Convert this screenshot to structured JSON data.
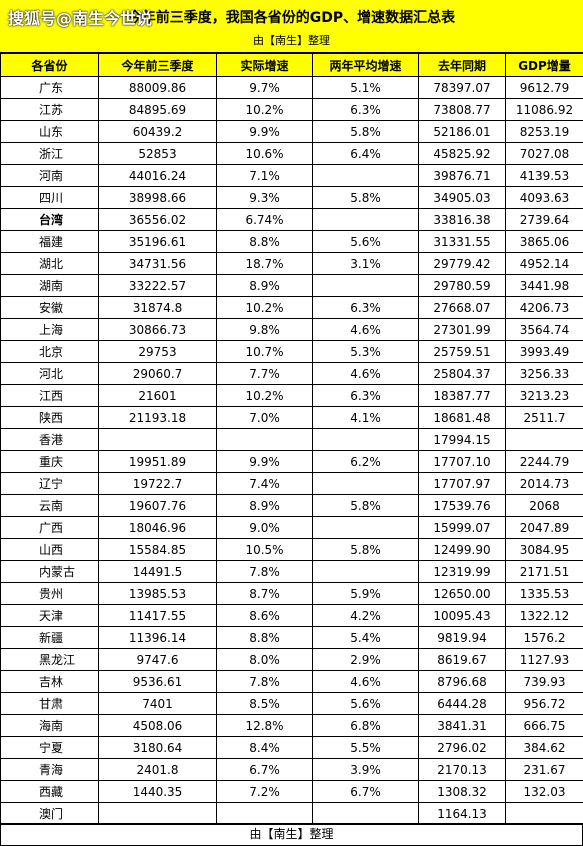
{
  "header": {
    "watermark": "搜狐号@南生今世说",
    "title": "今年前三季度，我国各省份的GDP、增速数据汇总表",
    "subtitle": "由【南生】整理"
  },
  "table": {
    "columns": [
      "各省份",
      "今年前三季度",
      "实际增速",
      "两年平均增速",
      "去年同期",
      "GDP增量"
    ],
    "rows": [
      [
        "广东",
        "88009.86",
        "9.7%",
        "5.1%",
        "78397.07",
        "9612.79"
      ],
      [
        "江苏",
        "84895.69",
        "10.2%",
        "6.3%",
        "73808.77",
        "11086.92"
      ],
      [
        "山东",
        "60439.2",
        "9.9%",
        "5.8%",
        "52186.01",
        "8253.19"
      ],
      [
        "浙江",
        "52853",
        "10.6%",
        "6.4%",
        "45825.92",
        "7027.08"
      ],
      [
        "河南",
        "44016.24",
        "7.1%",
        "",
        "39876.71",
        "4139.53"
      ],
      [
        "四川",
        "38998.66",
        "9.3%",
        "5.8%",
        "34905.03",
        "4093.63"
      ],
      [
        "台湾",
        "36556.02",
        "6.74%",
        "",
        "33816.38",
        "2739.64"
      ],
      [
        "福建",
        "35196.61",
        "8.8%",
        "5.6%",
        "31331.55",
        "3865.06"
      ],
      [
        "湖北",
        "34731.56",
        "18.7%",
        "3.1%",
        "29779.42",
        "4952.14"
      ],
      [
        "湖南",
        "33222.57",
        "8.9%",
        "",
        "29780.59",
        "3441.98"
      ],
      [
        "安徽",
        "31874.8",
        "10.2%",
        "6.3%",
        "27668.07",
        "4206.73"
      ],
      [
        "上海",
        "30866.73",
        "9.8%",
        "4.6%",
        "27301.99",
        "3564.74"
      ],
      [
        "北京",
        "29753",
        "10.7%",
        "5.3%",
        "25759.51",
        "3993.49"
      ],
      [
        "河北",
        "29060.7",
        "7.7%",
        "4.6%",
        "25804.37",
        "3256.33"
      ],
      [
        "江西",
        "21601",
        "10.2%",
        "6.3%",
        "18387.77",
        "3213.23"
      ],
      [
        "陕西",
        "21193.18",
        "7.0%",
        "4.1%",
        "18681.48",
        "2511.7"
      ],
      [
        "香港",
        "",
        "",
        "",
        "17994.15",
        ""
      ],
      [
        "重庆",
        "19951.89",
        "9.9%",
        "6.2%",
        "17707.10",
        "2244.79"
      ],
      [
        "辽宁",
        "19722.7",
        "7.4%",
        "",
        "17707.97",
        "2014.73"
      ],
      [
        "云南",
        "19607.76",
        "8.9%",
        "5.8%",
        "17539.76",
        "2068"
      ],
      [
        "广西",
        "18046.96",
        "9.0%",
        "",
        "15999.07",
        "2047.89"
      ],
      [
        "山西",
        "15584.85",
        "10.5%",
        "5.8%",
        "12499.90",
        "3084.95"
      ],
      [
        "内蒙古",
        "14491.5",
        "7.8%",
        "",
        "12319.99",
        "2171.51"
      ],
      [
        "贵州",
        "13985.53",
        "8.7%",
        "5.9%",
        "12650.00",
        "1335.53"
      ],
      [
        "天津",
        "11417.55",
        "8.6%",
        "4.2%",
        "10095.43",
        "1322.12"
      ],
      [
        "新疆",
        "11396.14",
        "8.8%",
        "5.4%",
        "9819.94",
        "1576.2"
      ],
      [
        "黑龙江",
        "9747.6",
        "8.0%",
        "2.9%",
        "8619.67",
        "1127.93"
      ],
      [
        "吉林",
        "9536.61",
        "7.8%",
        "4.6%",
        "8796.68",
        "739.93"
      ],
      [
        "甘肃",
        "7401",
        "8.5%",
        "5.6%",
        "6444.28",
        "956.72"
      ],
      [
        "海南",
        "4508.06",
        "12.8%",
        "6.8%",
        "3841.31",
        "666.75"
      ],
      [
        "宁夏",
        "3180.64",
        "8.4%",
        "5.5%",
        "2796.02",
        "384.62"
      ],
      [
        "青海",
        "2401.8",
        "6.7%",
        "3.9%",
        "2170.13",
        "231.67"
      ],
      [
        "西藏",
        "1440.35",
        "7.2%",
        "6.7%",
        "1308.32",
        "132.03"
      ],
      [
        "澳门",
        "",
        "",
        "",
        "1164.13",
        ""
      ]
    ]
  },
  "footer": {
    "text": "由【南生】整理"
  }
}
